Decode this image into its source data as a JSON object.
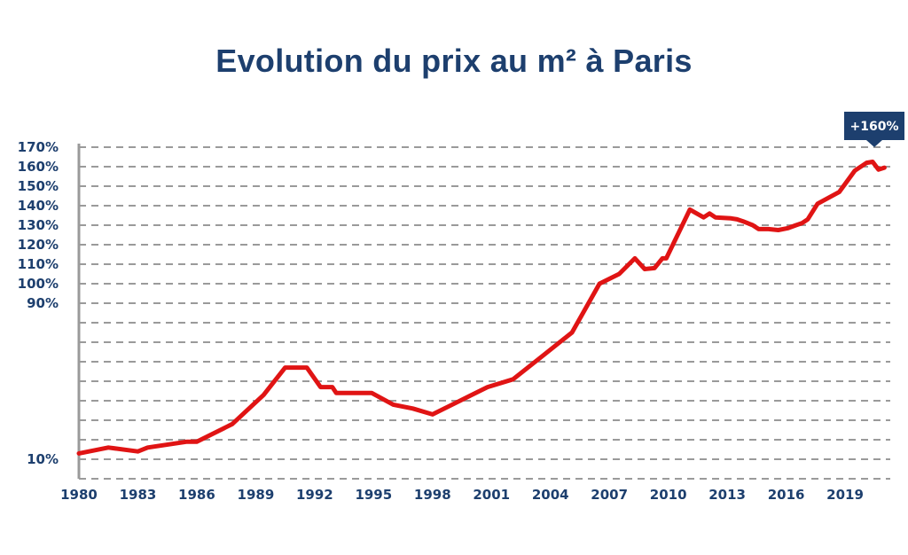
{
  "chart_data": {
    "type": "line",
    "title": "Evolution du prix au m² à Paris",
    "xlabel": "",
    "ylabel": "",
    "xlim": [
      1980,
      2021.3
    ],
    "ylim": [
      0,
      170
    ],
    "grid": true,
    "y_tick_labels": [
      "10%",
      "90%",
      "100%",
      "110%",
      "120%",
      "130%",
      "140%",
      "150%",
      "160%",
      "170%"
    ],
    "x_tick_labels": [
      "1980",
      "1983",
      "1986",
      "1989",
      "1992",
      "1995",
      "1998",
      "2001",
      "2004",
      "2007",
      "2010",
      "2013",
      "2016",
      "2019"
    ],
    "annotation": "+160%",
    "color": "#e01414",
    "series": [
      {
        "x": [
          1980,
          1981.5,
          1983,
          1983.5,
          1985.5,
          1986,
          1987.8,
          1989.4,
          1990.5,
          1991.6,
          1992.3,
          1992.9,
          1993.1,
          1994.9,
          1996,
          1997,
          1998,
          2000,
          2000.8,
          2002.1,
          2003.6,
          2005.1,
          2006.5,
          2007.5,
          2008.3,
          2008.8,
          2009.3,
          2009.7,
          2009.9,
          2011.1,
          2011.8,
          2012.1,
          2012.4,
          2013.2,
          2013.5,
          2013.8,
          2014.3,
          2014.6,
          2015.1,
          2015.6,
          2016.1,
          2016.5,
          2016.8,
          2017.1,
          2017.6,
          2018.7,
          2019.5,
          2020.1,
          2020.4,
          2020.7,
          2021.0
        ],
        "y": [
          13,
          16,
          14,
          16,
          19,
          19,
          28,
          43,
          57,
          57,
          47,
          47,
          44,
          44,
          38,
          36,
          33,
          43,
          47,
          51,
          63,
          75,
          100,
          105,
          113,
          107.5,
          108,
          113,
          113,
          138,
          134,
          136,
          134,
          133.5,
          133,
          132,
          130,
          128,
          128,
          127.5,
          128.5,
          130,
          131,
          133,
          141,
          147,
          158,
          162,
          162.5,
          158.5,
          159.5
        ]
      }
    ]
  }
}
